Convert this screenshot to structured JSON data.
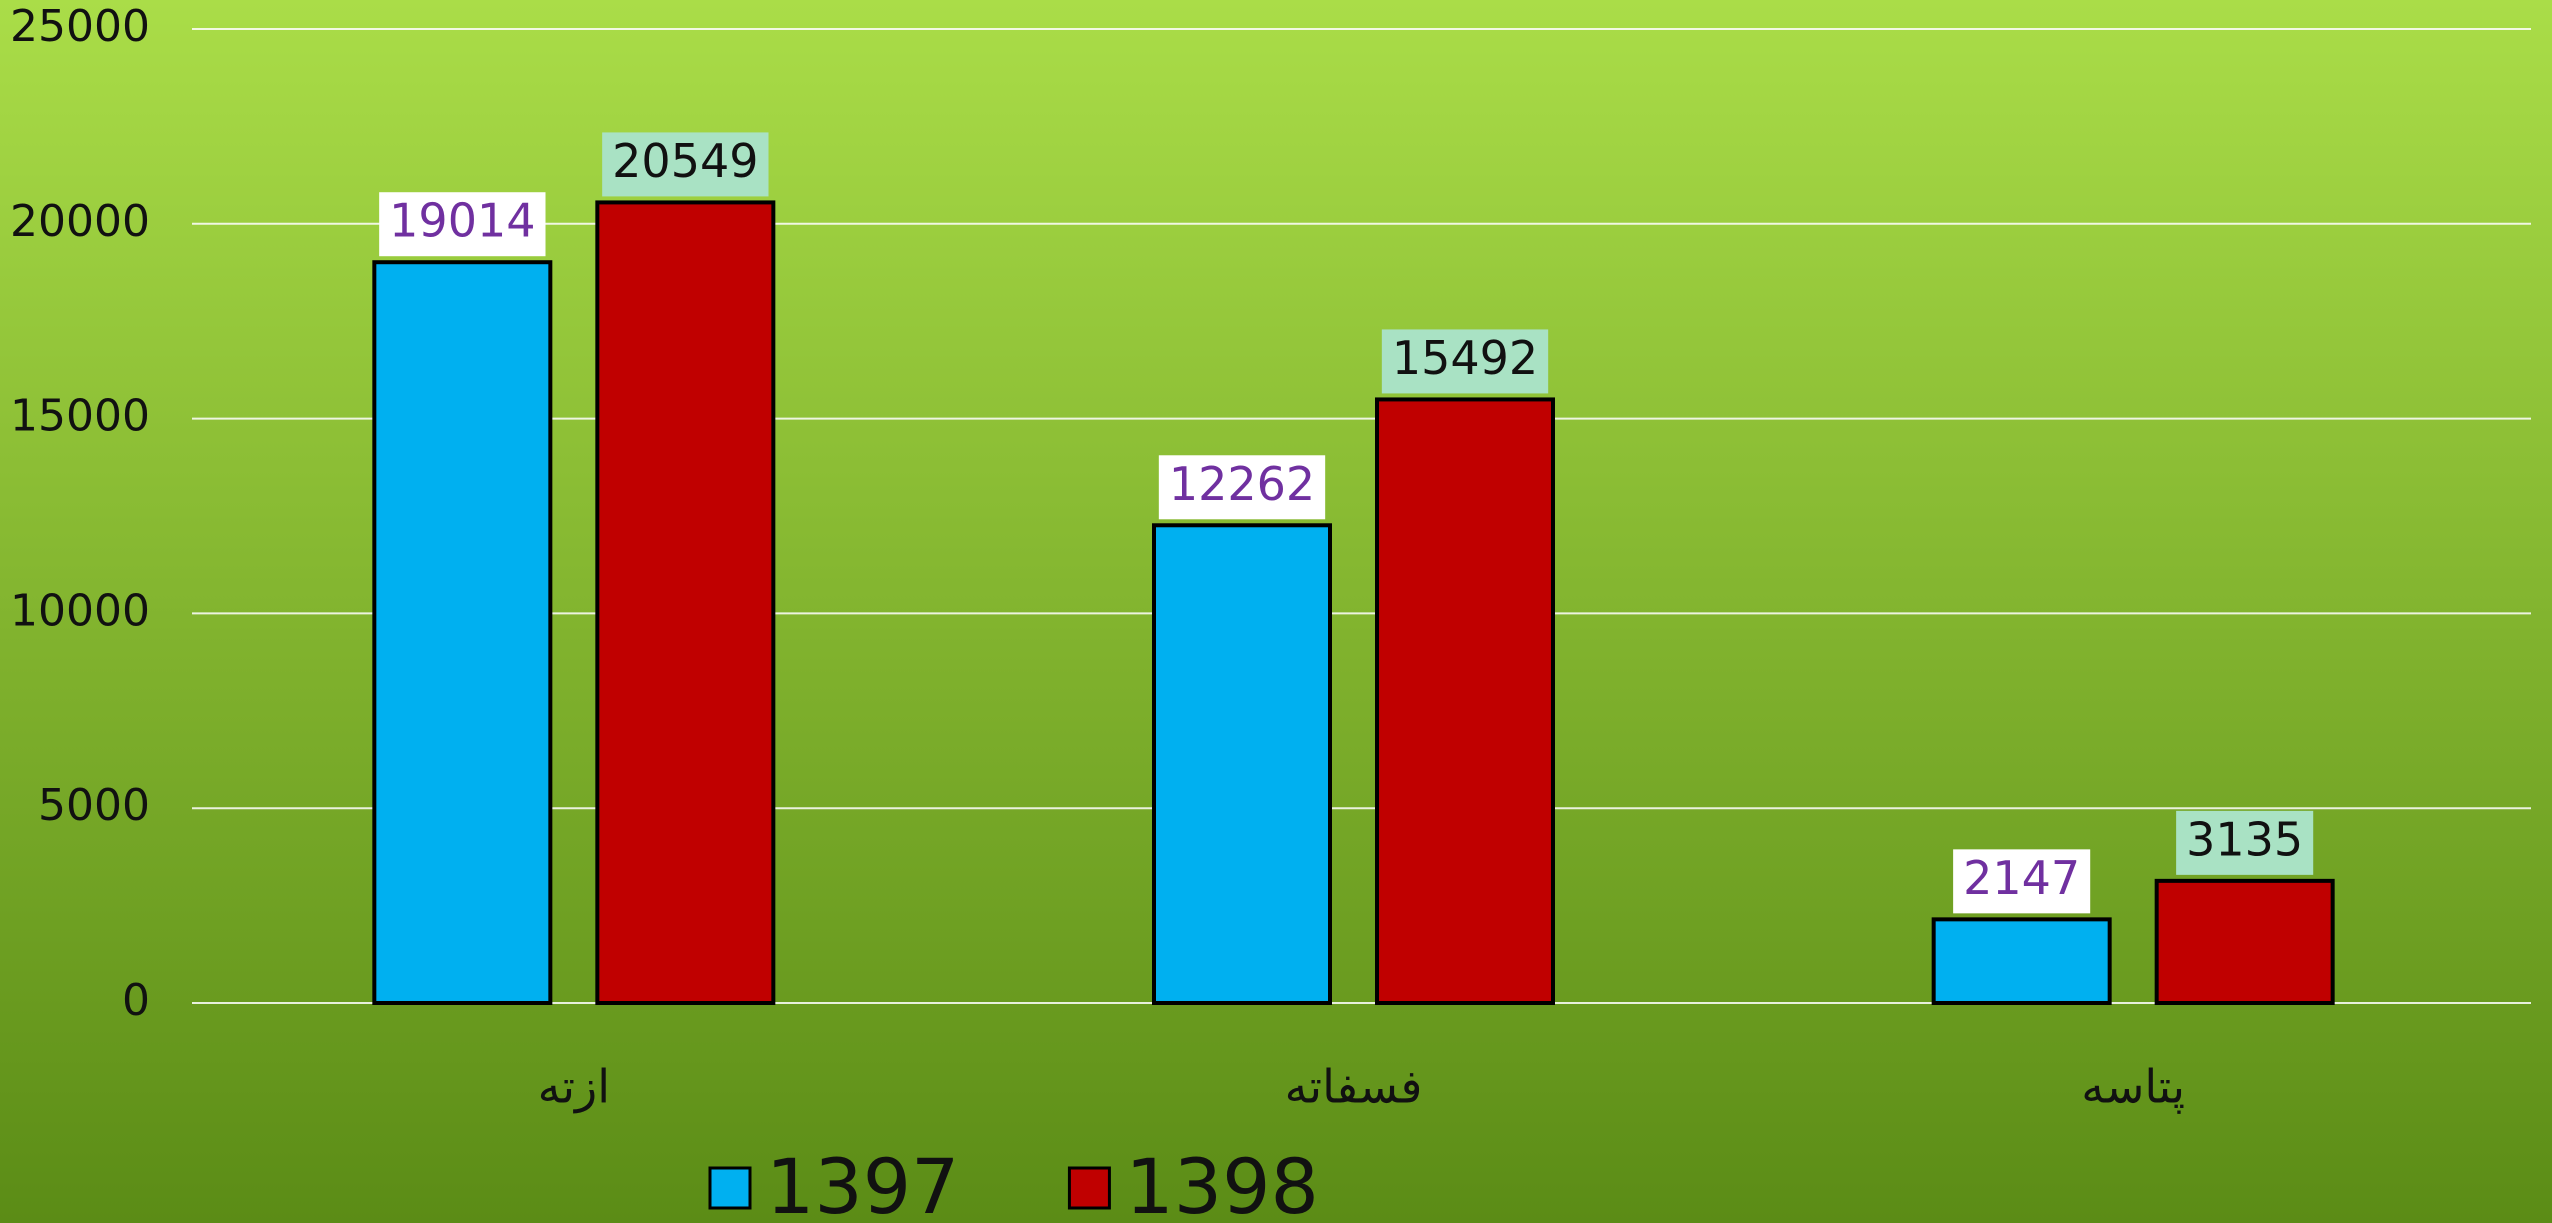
{
  "chart_data": {
    "type": "bar",
    "categories": [
      "ازته",
      "فسفاته",
      "پتاسه"
    ],
    "series": [
      {
        "name": "1397",
        "color": "#00b0f0",
        "values": [
          19014,
          12262,
          2147
        ]
      },
      {
        "name": "1398",
        "color": "#c00000",
        "values": [
          20549,
          15492,
          3135
        ]
      }
    ],
    "ylim": [
      0,
      25000
    ],
    "yticks": [
      0,
      5000,
      10000,
      15000,
      20000,
      25000
    ],
    "grid": true,
    "legend": "bottom"
  }
}
